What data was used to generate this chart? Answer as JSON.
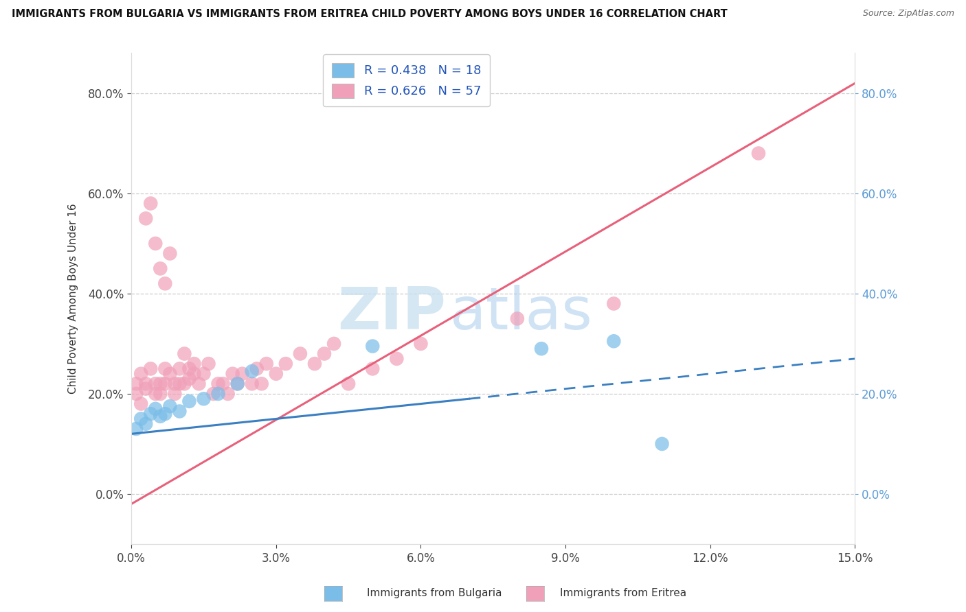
{
  "title": "IMMIGRANTS FROM BULGARIA VS IMMIGRANTS FROM ERITREA CHILD POVERTY AMONG BOYS UNDER 16 CORRELATION CHART",
  "source": "Source: ZipAtlas.com",
  "ylabel": "Child Poverty Among Boys Under 16",
  "legend_label1": "Immigrants from Bulgaria",
  "legend_label2": "Immigrants from Eritrea",
  "R1": 0.438,
  "N1": 18,
  "R2": 0.626,
  "N2": 57,
  "color_bulgaria": "#7abde8",
  "color_eritrea": "#f0a0b8",
  "line_color_bulgaria": "#3a7fc1",
  "line_color_eritrea": "#e8607a",
  "xlim": [
    0.0,
    0.15
  ],
  "ylim": [
    -0.1,
    0.88
  ],
  "xticks": [
    0.0,
    0.03,
    0.06,
    0.09,
    0.12,
    0.15
  ],
  "yticks": [
    0.0,
    0.2,
    0.4,
    0.6,
    0.8
  ],
  "watermark_zip": "ZIP",
  "watermark_atlas": "atlas",
  "bulgaria_x": [
    0.001,
    0.002,
    0.003,
    0.004,
    0.005,
    0.006,
    0.007,
    0.008,
    0.01,
    0.012,
    0.015,
    0.018,
    0.022,
    0.025,
    0.05,
    0.085,
    0.1,
    0.11
  ],
  "bulgaria_y": [
    0.13,
    0.15,
    0.14,
    0.16,
    0.17,
    0.155,
    0.16,
    0.175,
    0.165,
    0.185,
    0.19,
    0.2,
    0.22,
    0.245,
    0.295,
    0.29,
    0.305,
    0.1
  ],
  "eritrea_x": [
    0.001,
    0.001,
    0.002,
    0.002,
    0.003,
    0.003,
    0.003,
    0.004,
    0.004,
    0.005,
    0.005,
    0.005,
    0.006,
    0.006,
    0.006,
    0.007,
    0.007,
    0.007,
    0.008,
    0.008,
    0.009,
    0.009,
    0.01,
    0.01,
    0.011,
    0.011,
    0.012,
    0.012,
    0.013,
    0.013,
    0.014,
    0.015,
    0.016,
    0.017,
    0.018,
    0.019,
    0.02,
    0.021,
    0.022,
    0.023,
    0.025,
    0.026,
    0.027,
    0.028,
    0.03,
    0.032,
    0.035,
    0.038,
    0.04,
    0.042,
    0.045,
    0.05,
    0.055,
    0.06,
    0.08,
    0.1,
    0.13
  ],
  "eritrea_y": [
    0.2,
    0.22,
    0.18,
    0.24,
    0.21,
    0.22,
    0.55,
    0.25,
    0.58,
    0.2,
    0.22,
    0.5,
    0.2,
    0.22,
    0.45,
    0.22,
    0.42,
    0.25,
    0.24,
    0.48,
    0.2,
    0.22,
    0.22,
    0.25,
    0.22,
    0.28,
    0.23,
    0.25,
    0.24,
    0.26,
    0.22,
    0.24,
    0.26,
    0.2,
    0.22,
    0.22,
    0.2,
    0.24,
    0.22,
    0.24,
    0.22,
    0.25,
    0.22,
    0.26,
    0.24,
    0.26,
    0.28,
    0.26,
    0.28,
    0.3,
    0.22,
    0.25,
    0.27,
    0.3,
    0.35,
    0.38,
    0.68
  ]
}
